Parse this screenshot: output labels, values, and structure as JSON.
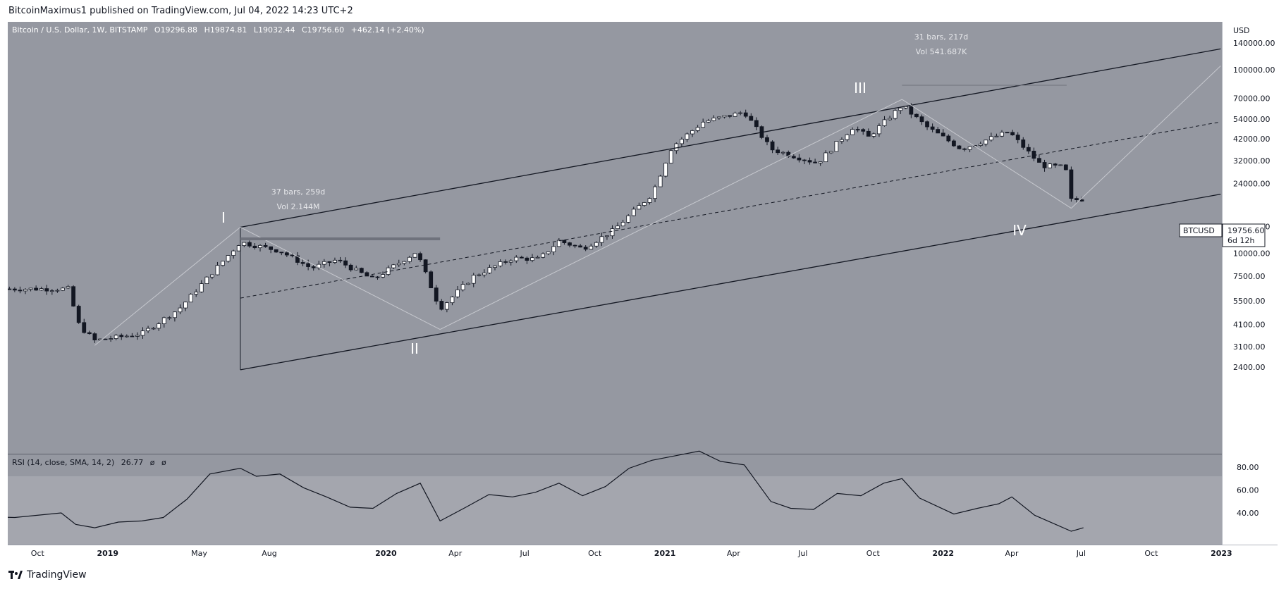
{
  "header": {
    "published": "BitcoinMaximus1 published on TradingView.com, Jul 04, 2022 14:23 UTC+2"
  },
  "footer": {
    "brand": "TradingView"
  },
  "legend": {
    "symbol": "Bitcoin / U.S. Dollar, 1W, BITSTAMP",
    "open_label": "O",
    "open": "19296.88",
    "high_label": "H",
    "high": "19874.81",
    "low_label": "L",
    "low": "19032.44",
    "close_label": "C",
    "close": "19756.60",
    "change": "+462.14 (+2.40%)"
  },
  "price_axis": {
    "currency": "USD",
    "ticks": [
      "140000.00",
      "100000.00",
      "70000.00",
      "54000.00",
      "42000.00",
      "32000.00",
      "24000.00",
      "14000.00",
      "10000.00",
      "7500.00",
      "5500.00",
      "4100.00",
      "3100.00",
      "2400.00"
    ]
  },
  "price_tag": {
    "symbol": "BTCUSD",
    "price": "19756.60",
    "countdown": "6d 12h"
  },
  "measures": [
    {
      "bars": "37 bars, 259d",
      "vol": "Vol 2.144M"
    },
    {
      "bars": "31 bars, 217d",
      "vol": "Vol 541.687K"
    }
  ],
  "waves": [
    "I",
    "II",
    "III",
    "IV"
  ],
  "rsi": {
    "label": "RSI (14, close, SMA, 14, 2)",
    "value": "26.77",
    "extra1": "ø",
    "extra2": "ø",
    "ticks": [
      "80.00",
      "60.00",
      "40.00"
    ]
  },
  "time_axis": [
    "Oct",
    "2019",
    "May",
    "Aug",
    "2020",
    "Apr",
    "Jul",
    "Oct",
    "2021",
    "Apr",
    "Jul",
    "Oct",
    "2022",
    "Apr",
    "Jul",
    "Oct",
    "2023"
  ],
  "colors": {
    "plot_bg": "#9598a1",
    "rsi_band": "#a4a6ae",
    "axis_bg": "#ffffff",
    "candle_up": "#ffffff",
    "candle_down": "#131722",
    "line": "#131722",
    "wave_label": "#ffffff"
  },
  "chart_data": {
    "type": "candlestick",
    "title": "Bitcoin / U.S. Dollar, 1W, BITSTAMP",
    "y_scale": "log",
    "y_axis_label": "USD",
    "last_price": 19756.6,
    "wave_points": [
      {
        "label": "I",
        "date": "2019-06-24",
        "price": 13880
      },
      {
        "label": "II",
        "date": "2020-03-12",
        "price": 3850
      },
      {
        "label": "III",
        "date": "2021-11-08",
        "price": 69000
      },
      {
        "label": "IV",
        "date": "2022-06-18",
        "price": 17600
      }
    ],
    "anchor_points": [
      {
        "date": "2018-04-01",
        "price": 6400
      },
      {
        "date": "2018-12-15",
        "price": 3150
      },
      {
        "date": "2022-12-31",
        "price": 105000
      }
    ],
    "channel_upper": [
      {
        "date": "2019-06-24",
        "price": 13880
      },
      {
        "date": "2022-12-31",
        "price": 130000
      }
    ],
    "channel_lower": [
      {
        "date": "2019-06-24",
        "price": 2320
      },
      {
        "date": "2022-12-31",
        "price": 21000
      }
    ],
    "channel_mid": [
      {
        "date": "2019-06-24",
        "price": 5700
      },
      {
        "date": "2022-12-31",
        "price": 52000
      }
    ],
    "rsi_series": {
      "name": "RSI",
      "points": [
        [
          "2018-03-01",
          40
        ],
        [
          "2018-05-01",
          41
        ],
        [
          "2018-07-01",
          37
        ],
        [
          "2018-09-01",
          36
        ],
        [
          "2018-11-01",
          40
        ],
        [
          "2018-11-20",
          30
        ],
        [
          "2018-12-15",
          27
        ],
        [
          "2019-01-15",
          32
        ],
        [
          "2019-02-15",
          33
        ],
        [
          "2019-03-15",
          36
        ],
        [
          "2019-04-15",
          52
        ],
        [
          "2019-05-15",
          74
        ],
        [
          "2019-06-24",
          79
        ],
        [
          "2019-07-15",
          72
        ],
        [
          "2019-08-15",
          74
        ],
        [
          "2019-09-15",
          62
        ],
        [
          "2019-10-15",
          54
        ],
        [
          "2019-11-15",
          45
        ],
        [
          "2019-12-15",
          44
        ],
        [
          "2020-01-15",
          57
        ],
        [
          "2020-02-15",
          66
        ],
        [
          "2020-03-12",
          33
        ],
        [
          "2020-04-15",
          45
        ],
        [
          "2020-05-15",
          56
        ],
        [
          "2020-06-15",
          54
        ],
        [
          "2020-07-15",
          58
        ],
        [
          "2020-08-15",
          66
        ],
        [
          "2020-09-15",
          55
        ],
        [
          "2020-10-15",
          63
        ],
        [
          "2020-11-15",
          79
        ],
        [
          "2020-12-15",
          86
        ],
        [
          "2021-01-15",
          90
        ],
        [
          "2021-02-15",
          94
        ],
        [
          "2021-03-15",
          85
        ],
        [
          "2021-04-15",
          82
        ],
        [
          "2021-05-20",
          50
        ],
        [
          "2021-06-15",
          44
        ],
        [
          "2021-07-15",
          43
        ],
        [
          "2021-08-15",
          57
        ],
        [
          "2021-09-15",
          55
        ],
        [
          "2021-10-15",
          66
        ],
        [
          "2021-11-08",
          70
        ],
        [
          "2021-12-01",
          53
        ],
        [
          "2022-01-15",
          39
        ],
        [
          "2022-02-15",
          44
        ],
        [
          "2022-03-15",
          48
        ],
        [
          "2022-04-01",
          54
        ],
        [
          "2022-05-01",
          38
        ],
        [
          "2022-06-18",
          24
        ],
        [
          "2022-07-04",
          27
        ]
      ]
    }
  }
}
